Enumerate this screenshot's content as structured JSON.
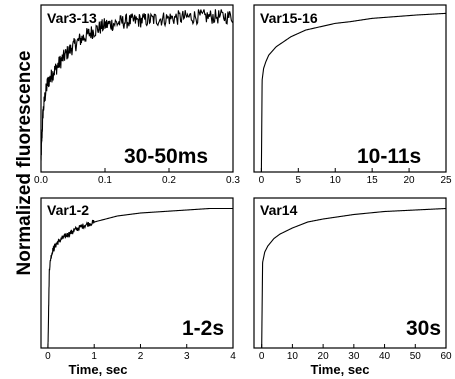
{
  "figure": {
    "ylabel": "Normalized fluorescence",
    "xlabel": "Time, sec"
  },
  "chart_data": [
    {
      "type": "line",
      "title": "Var3-13",
      "annotation": "30-50ms",
      "xlim": [
        0,
        0.3
      ],
      "ylim": [
        0,
        1
      ],
      "xticks": [
        "0.0",
        "0.1",
        "0.2",
        "0.3"
      ],
      "noise": 0.045,
      "x": [
        0.0,
        0.003,
        0.006,
        0.01,
        0.02,
        0.03,
        0.04,
        0.05,
        0.06,
        0.08,
        0.1,
        0.13,
        0.16,
        0.2,
        0.24,
        0.28,
        0.3
      ],
      "y": [
        0.08,
        0.35,
        0.45,
        0.53,
        0.6,
        0.66,
        0.71,
        0.75,
        0.79,
        0.84,
        0.88,
        0.9,
        0.91,
        0.92,
        0.93,
        0.93,
        0.93
      ]
    },
    {
      "type": "line",
      "title": "Var15-16",
      "annotation": "10-11s",
      "xlim": [
        -1,
        25
      ],
      "ylim": [
        0,
        1
      ],
      "xticks": [
        "0",
        "5",
        "10",
        "15",
        "20",
        "25"
      ],
      "noise": 0,
      "x": [
        0,
        0.1,
        0.3,
        0.6,
        1,
        2,
        3,
        4,
        6,
        8,
        10,
        12,
        15,
        18,
        21,
        25
      ],
      "y": [
        0.0,
        0.55,
        0.62,
        0.66,
        0.7,
        0.75,
        0.78,
        0.81,
        0.85,
        0.87,
        0.89,
        0.9,
        0.92,
        0.93,
        0.94,
        0.95
      ]
    },
    {
      "type": "line",
      "title": "Var1-2",
      "annotation": "1-2s",
      "xlim": [
        -0.15,
        4
      ],
      "ylim": [
        0,
        1
      ],
      "xticks": [
        "0",
        "1",
        "2",
        "3",
        "4"
      ],
      "noise": 0.018,
      "noise_until": 1.0,
      "x": [
        0,
        0.03,
        0.06,
        0.1,
        0.2,
        0.3,
        0.4,
        0.6,
        0.8,
        1.0,
        1.5,
        2.0,
        2.5,
        3.0,
        3.5,
        4.0
      ],
      "y": [
        0.0,
        0.52,
        0.6,
        0.65,
        0.7,
        0.73,
        0.75,
        0.79,
        0.82,
        0.84,
        0.88,
        0.9,
        0.91,
        0.92,
        0.93,
        0.93
      ]
    },
    {
      "type": "line",
      "title": "Var14",
      "annotation": "30s",
      "xlim": [
        -2.5,
        60
      ],
      "ylim": [
        0,
        1
      ],
      "xticks": [
        "0",
        "10",
        "20",
        "30",
        "40",
        "50",
        "60"
      ],
      "noise": 0,
      "x": [
        0,
        0.3,
        1,
        2,
        4,
        6,
        10,
        15,
        20,
        30,
        40,
        50,
        60
      ],
      "y": [
        0.0,
        0.57,
        0.64,
        0.68,
        0.73,
        0.76,
        0.8,
        0.84,
        0.86,
        0.89,
        0.91,
        0.92,
        0.93
      ]
    }
  ]
}
